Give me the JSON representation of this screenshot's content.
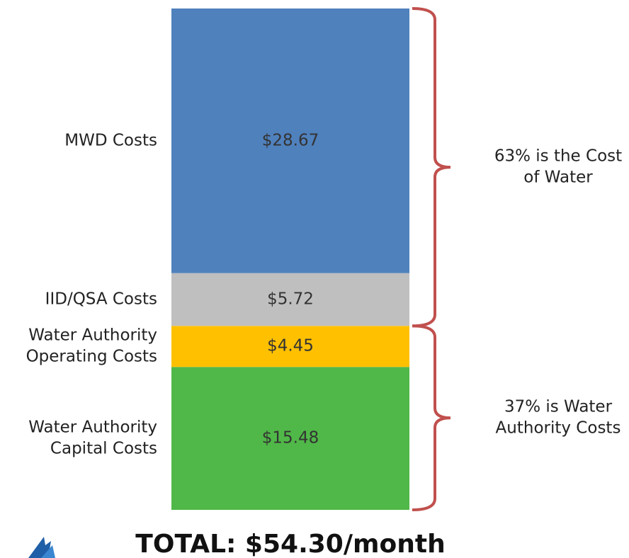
{
  "chart_data": {
    "type": "stacked-bar",
    "series": [
      {
        "name": [
          "Water Authority",
          "Capital Costs"
        ],
        "color": "#50b848",
        "values": [
          15.48
        ],
        "value_labels": [
          "$15.48"
        ]
      },
      {
        "name": [
          "Water Authority",
          "Operating  Costs"
        ],
        "color": "#ffc000",
        "values": [
          4.45
        ],
        "value_labels": [
          "$4.45"
        ]
      },
      {
        "name": [
          "IID/QSA Costs"
        ],
        "color": "#bfbfbf",
        "values": [
          5.72
        ],
        "value_labels": [
          "$5.72"
        ]
      },
      {
        "name": [
          "MWD Costs"
        ],
        "color": "#4f81bd",
        "values": [
          28.67
        ],
        "value_labels": [
          "$28.67"
        ]
      }
    ],
    "annotations": [
      [
        "63% is the Cost",
        "of Water"
      ],
      [
        "37% is Water",
        "Authority Costs"
      ]
    ],
    "total": "TOTAL: $54.30/month",
    "brace_color": "#c0504d"
  }
}
